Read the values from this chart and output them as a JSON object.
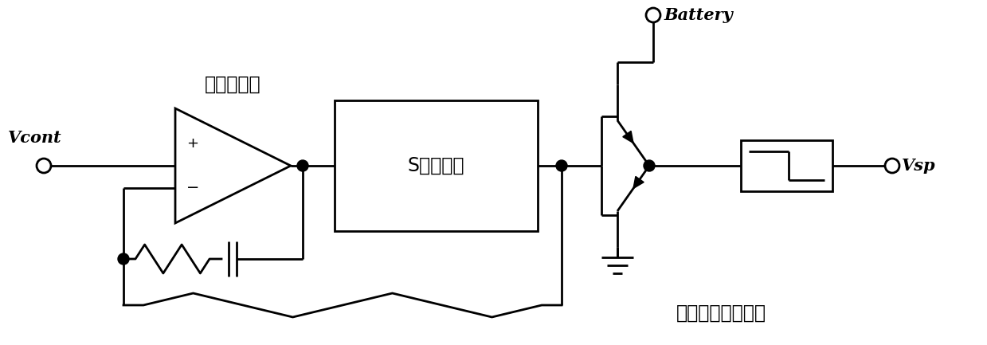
{
  "bg_color": "#ffffff",
  "lc": "#000000",
  "lw": 2.0,
  "fs_en": 15,
  "fs_zh": 17,
  "label_vcont": "Vcont",
  "label_battery": "Battery",
  "label_vsp": "Vsp",
  "label_opamp": "运算放大器",
  "label_smod": "S类调制器",
  "label_pushpull": "推挤式电流放大器",
  "figsize": [
    12.39,
    4.33
  ],
  "dpi": 100
}
